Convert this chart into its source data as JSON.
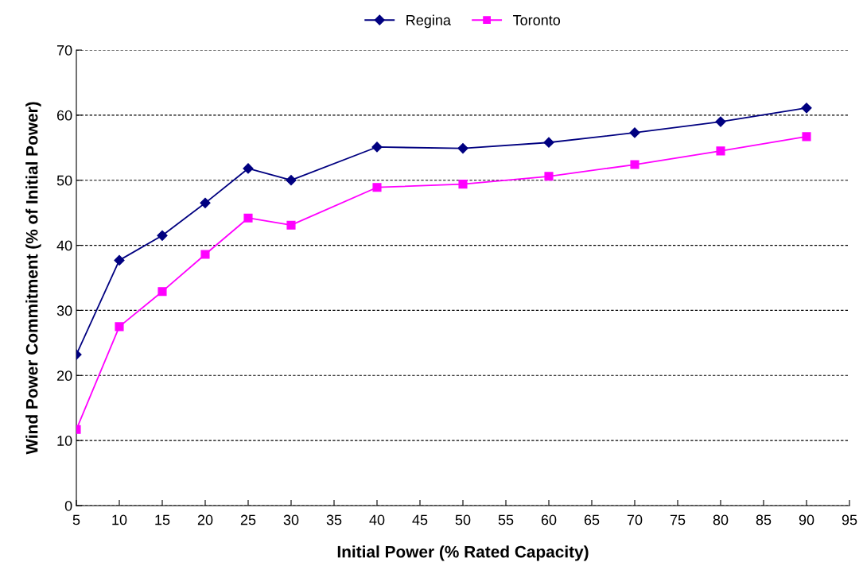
{
  "chart_data": {
    "type": "line",
    "xlabel": "Initial Power (% Rated Capacity)",
    "ylabel": "Wind Power Commitment (% of Initial Power)",
    "x": [
      5,
      10,
      15,
      20,
      25,
      30,
      40,
      50,
      60,
      70,
      80,
      90
    ],
    "series": [
      {
        "name": "Regina",
        "color": "#000080",
        "marker": "diamond",
        "values": [
          23.2,
          37.7,
          41.5,
          46.5,
          51.8,
          50.0,
          55.1,
          54.9,
          55.8,
          57.3,
          59.0,
          61.1
        ]
      },
      {
        "name": "Toronto",
        "color": "#ff00ff",
        "marker": "square",
        "values": [
          11.7,
          27.5,
          32.9,
          38.6,
          44.2,
          43.1,
          48.9,
          49.4,
          50.6,
          52.4,
          54.5,
          56.7
        ]
      }
    ],
    "xlim": [
      5,
      95
    ],
    "xticks": [
      5,
      10,
      15,
      20,
      25,
      30,
      35,
      40,
      45,
      50,
      55,
      60,
      65,
      70,
      75,
      80,
      85,
      90,
      95
    ],
    "ylim": [
      0,
      70
    ],
    "yticks": [
      0,
      10,
      20,
      30,
      40,
      50,
      60,
      70
    ],
    "grid": "y",
    "legend": "top",
    "line_style": "solid"
  }
}
